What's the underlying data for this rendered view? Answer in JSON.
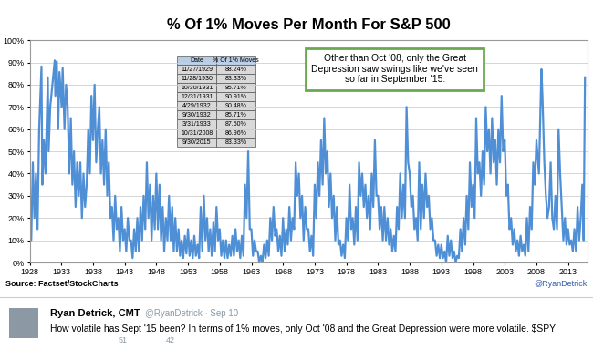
{
  "chart_data": {
    "type": "line",
    "title": "% Of 1% Moves Per Month For S&P 500",
    "x": [
      1928,
      1928.25,
      1928.5,
      1928.75,
      1929,
      1929.25,
      1929.5,
      1929.87,
      1930,
      1930.25,
      1930.5,
      1930.87,
      1931,
      1931.25,
      1931.79,
      1931.96,
      1932.05,
      1932.29,
      1932.5,
      1932.71,
      1933.05,
      1933.21,
      1933.5,
      1933.75,
      1934,
      1934.25,
      1934.5,
      1934.75,
      1935,
      1935.25,
      1935.5,
      1935.75,
      1936,
      1936.25,
      1936.5,
      1936.75,
      1937,
      1937.25,
      1937.5,
      1937.75,
      1938,
      1938.25,
      1938.5,
      1938.75,
      1939,
      1939.25,
      1939.5,
      1939.75,
      1940,
      1940.25,
      1940.5,
      1940.75,
      1941,
      1941.25,
      1941.5,
      1941.75,
      1942,
      1942.25,
      1942.5,
      1942.75,
      1943,
      1943.25,
      1943.5,
      1943.75,
      1944,
      1944.25,
      1944.5,
      1944.75,
      1945,
      1945.25,
      1945.5,
      1945.75,
      1946,
      1946.25,
      1946.5,
      1946.75,
      1947,
      1947.25,
      1947.5,
      1947.75,
      1948,
      1948.25,
      1948.5,
      1948.75,
      1949,
      1949.25,
      1949.5,
      1949.75,
      1950,
      1950.25,
      1950.5,
      1950.75,
      1951,
      1951.25,
      1951.5,
      1951.75,
      1952,
      1952.25,
      1952.5,
      1952.75,
      1953,
      1953.25,
      1953.5,
      1953.75,
      1954,
      1954.25,
      1954.5,
      1954.75,
      1955,
      1955.25,
      1955.5,
      1955.75,
      1956,
      1956.25,
      1956.5,
      1956.75,
      1957,
      1957.25,
      1957.5,
      1957.75,
      1958,
      1958.25,
      1958.5,
      1958.75,
      1959,
      1959.25,
      1959.5,
      1959.75,
      1960,
      1960.25,
      1960.5,
      1960.75,
      1961,
      1961.25,
      1961.5,
      1961.75,
      1962,
      1962.25,
      1962.5,
      1962.75,
      1963,
      1963.25,
      1963.5,
      1963.75,
      1964,
      1964.25,
      1964.5,
      1964.75,
      1965,
      1965.25,
      1965.5,
      1965.75,
      1966,
      1966.25,
      1966.5,
      1966.75,
      1967,
      1967.25,
      1967.5,
      1967.75,
      1968,
      1968.25,
      1968.5,
      1968.75,
      1969,
      1969.25,
      1969.5,
      1969.75,
      1970,
      1970.25,
      1970.5,
      1970.75,
      1971,
      1971.25,
      1971.5,
      1971.75,
      1972,
      1972.25,
      1972.5,
      1972.75,
      1973,
      1973.25,
      1973.5,
      1973.75,
      1974,
      1974.25,
      1974.5,
      1974.75,
      1975,
      1975.25,
      1975.5,
      1975.75,
      1976,
      1976.25,
      1976.5,
      1976.75,
      1977,
      1977.25,
      1977.5,
      1977.75,
      1978,
      1978.25,
      1978.5,
      1978.75,
      1979,
      1979.25,
      1979.5,
      1979.75,
      1980,
      1980.25,
      1980.5,
      1980.75,
      1981,
      1981.25,
      1981.5,
      1981.75,
      1982,
      1982.25,
      1982.5,
      1982.75,
      1983,
      1983.25,
      1983.5,
      1983.75,
      1984,
      1984.25,
      1984.5,
      1984.75,
      1985,
      1985.25,
      1985.5,
      1985.75,
      1986,
      1986.25,
      1986.5,
      1986.75,
      1987,
      1987.25,
      1987.5,
      1987.75,
      1988,
      1988.25,
      1988.5,
      1988.75,
      1989,
      1989.25,
      1989.5,
      1989.75,
      1990,
      1990.25,
      1990.5,
      1990.75,
      1991,
      1991.25,
      1991.5,
      1991.75,
      1992,
      1992.25,
      1992.5,
      1992.75,
      1993,
      1993.25,
      1993.5,
      1993.75,
      1994,
      1994.25,
      1994.5,
      1994.75,
      1995,
      1995.25,
      1995.5,
      1995.75,
      1996,
      1996.25,
      1996.5,
      1996.75,
      1997,
      1997.25,
      1997.5,
      1997.75,
      1998,
      1998.25,
      1998.5,
      1998.75,
      1999,
      1999.25,
      1999.5,
      1999.75,
      2000,
      2000.25,
      2000.5,
      2000.75,
      2001,
      2001.25,
      2001.5,
      2001.75,
      2002,
      2002.25,
      2002.5,
      2002.75,
      2003,
      2003.25,
      2003.5,
      2003.75,
      2004,
      2004.25,
      2004.5,
      2004.75,
      2005,
      2005.25,
      2005.5,
      2005.75,
      2006,
      2006.25,
      2006.5,
      2006.75,
      2007,
      2007.25,
      2007.5,
      2007.75,
      2008,
      2008.4,
      2008.79,
      2008.95,
      2009,
      2009.25,
      2009.5,
      2009.75,
      2010,
      2010.25,
      2010.5,
      2010.75,
      2011,
      2011.25,
      2011.5,
      2011.75,
      2012,
      2012.25,
      2012.5,
      2012.75,
      2013,
      2013.25,
      2013.5,
      2013.75,
      2014,
      2014.25,
      2014.5,
      2014.75,
      2015,
      2015.25,
      2015.45,
      2015.67
    ],
    "values": [
      30,
      10,
      45,
      20,
      40,
      15,
      60,
      88.24,
      35,
      55,
      40,
      83.33,
      50,
      70,
      85.71,
      90.91,
      75,
      90.48,
      60,
      85.71,
      70,
      87.5,
      60,
      80,
      70,
      40,
      65,
      35,
      50,
      25,
      45,
      30,
      45,
      20,
      40,
      25,
      35,
      60,
      40,
      75,
      55,
      80,
      45,
      60,
      70,
      40,
      55,
      35,
      60,
      30,
      45,
      20,
      25,
      10,
      30,
      15,
      20,
      5,
      25,
      10,
      15,
      5,
      20,
      10,
      10,
      2,
      15,
      5,
      20,
      5,
      25,
      10,
      30,
      15,
      45,
      20,
      35,
      10,
      30,
      15,
      40,
      15,
      35,
      10,
      25,
      5,
      20,
      10,
      30,
      10,
      25,
      5,
      20,
      5,
      15,
      3,
      10,
      2,
      12,
      4,
      15,
      3,
      10,
      2,
      12,
      3,
      8,
      2,
      25,
      5,
      30,
      10,
      20,
      5,
      15,
      3,
      18,
      5,
      25,
      10,
      15,
      3,
      10,
      2,
      10,
      2,
      8,
      3,
      12,
      3,
      15,
      5,
      10,
      2,
      12,
      3,
      35,
      20,
      50,
      15,
      15,
      3,
      10,
      5,
      5,
      0,
      3,
      0,
      8,
      2,
      10,
      3,
      20,
      10,
      25,
      12,
      15,
      5,
      12,
      3,
      20,
      5,
      15,
      8,
      25,
      10,
      20,
      15,
      45,
      30,
      40,
      20,
      30,
      10,
      25,
      15,
      15,
      5,
      12,
      3,
      35,
      20,
      45,
      30,
      55,
      35,
      65,
      40,
      50,
      25,
      40,
      20,
      30,
      10,
      25,
      8,
      10,
      3,
      8,
      2,
      20,
      10,
      35,
      15,
      20,
      8,
      25,
      10,
      45,
      30,
      40,
      25,
      35,
      20,
      30,
      15,
      40,
      25,
      55,
      30,
      30,
      15,
      25,
      10,
      25,
      10,
      20,
      8,
      15,
      5,
      12,
      5,
      25,
      15,
      40,
      20,
      35,
      20,
      70,
      45,
      40,
      25,
      30,
      15,
      20,
      10,
      45,
      15,
      35,
      20,
      40,
      25,
      30,
      15,
      20,
      10,
      10,
      3,
      8,
      2,
      8,
      2,
      5,
      0,
      12,
      3,
      10,
      2,
      5,
      0,
      3,
      2,
      15,
      5,
      20,
      8,
      30,
      15,
      45,
      25,
      35,
      20,
      65,
      40,
      45,
      30,
      50,
      35,
      70,
      50,
      60,
      40,
      65,
      45,
      55,
      35,
      60,
      45,
      75,
      50,
      55,
      30,
      35,
      15,
      20,
      8,
      15,
      5,
      10,
      3,
      12,
      5,
      8,
      3,
      20,
      5,
      25,
      15,
      45,
      35,
      55,
      40,
      86.96,
      75,
      70,
      45,
      30,
      20,
      25,
      45,
      20,
      15,
      30,
      15,
      60,
      40,
      25,
      10,
      20,
      8,
      15,
      8,
      10,
      5,
      15,
      5,
      25,
      10,
      20,
      35,
      10,
      83.33
    ],
    "color": "#4f8fd6",
    "xlim": [
      1928,
      2016
    ],
    "xticks": [
      1928,
      1933,
      1938,
      1943,
      1948,
      1953,
      1958,
      1963,
      1968,
      1973,
      1978,
      1983,
      1988,
      1993,
      1998,
      2003,
      2008,
      2013
    ],
    "ylim": [
      0,
      100
    ],
    "yticks": [
      {
        "value": 0,
        "label": "0%"
      },
      {
        "value": 10,
        "label": "10%"
      },
      {
        "value": 20,
        "label": "20%"
      },
      {
        "value": 30,
        "label": "30%"
      },
      {
        "value": 40,
        "label": "40%"
      },
      {
        "value": 50,
        "label": "50%"
      },
      {
        "value": 60,
        "label": "60%"
      },
      {
        "value": 70,
        "label": "70%"
      },
      {
        "value": 80,
        "label": "80%"
      },
      {
        "value": 90,
        "label": "90%"
      },
      {
        "value": 100,
        "label": "100%"
      }
    ],
    "grid": true,
    "annotation": "Other than Oct '08, only the Great Depression saw swings like we've seen so far in September '15.",
    "table": {
      "header": [
        "Date",
        "% Of 1% Moves"
      ],
      "rows": [
        [
          "11/27/1929",
          "88.24%"
        ],
        [
          "11/28/1930",
          "83.33%"
        ],
        [
          "10/30/1931",
          "85.71%"
        ],
        [
          "12/31/1931",
          "90.91%"
        ],
        [
          "4/29/1932",
          "90.48%"
        ],
        [
          "9/30/1932",
          "85.71%"
        ],
        [
          "3/31/1933",
          "87.50%"
        ],
        [
          "10/31/2008",
          "86.96%"
        ],
        [
          "9/30/2015",
          "83.33%"
        ]
      ]
    },
    "source": "Source: Factset/StockCharts",
    "credit": "@RyanDetrick"
  },
  "tweet": {
    "name": "Ryan Detrick, CMT",
    "handle": "@RyanDetrick · Sep 10",
    "text": "How volatile has Sept '15 been? In terms of 1% moves, only Oct '08 and the Great Depression were more volatile. $SPY",
    "retweets": 51,
    "likes": 42
  }
}
